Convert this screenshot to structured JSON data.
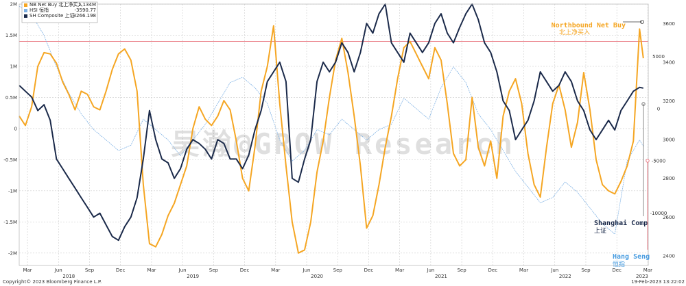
{
  "chart_data": {
    "type": "line",
    "legend": {
      "placement": "top-left",
      "entries": [
        {
          "label": "NB Net Buy 北上净买入",
          "value": "1.134M",
          "color": "#f5a623"
        },
        {
          "label": "HSI 恒指",
          "value": "-3590.77",
          "color": "#7fb2e5"
        },
        {
          "label": "SH Composite 上证",
          "value": "3266.198",
          "color": "#1b2a4a"
        }
      ]
    },
    "left_axis": {
      "ticks": [
        "2M",
        "1.5M",
        "1M",
        "0.5M",
        "0",
        "-0.5M",
        "-1M",
        "-1.5M",
        "-2M"
      ],
      "range": [
        -2.2,
        2.0
      ]
    },
    "right_axis_sh": {
      "ticks": [
        "3600",
        "3400",
        "3200",
        "3000",
        "2800",
        "2600",
        "2400"
      ],
      "range": [
        2350,
        3700
      ]
    },
    "right_axis_hsi": {
      "ticks": [
        "5000",
        "0",
        "-5000",
        "-10000"
      ],
      "range": [
        -15000,
        10000
      ]
    },
    "x_axis": {
      "month_ticks": [
        "Mar",
        "Jun",
        "Sep",
        "Dec",
        "Mar",
        "Jun",
        "Sep",
        "Dec",
        "Mar",
        "Jun",
        "Sep",
        "Dec",
        "Mar",
        "Jun",
        "Sep",
        "Dec",
        "Mar",
        "Jun",
        "Sep",
        "Dec",
        "Mar"
      ],
      "year_labels": [
        "2018",
        "2019",
        "2020",
        "2021",
        "2022",
        "2023"
      ],
      "range": [
        2018.1,
        2023.17
      ]
    },
    "reference_line": {
      "value": 1.4,
      "axis": "left",
      "color": "#e8707a"
    },
    "annotations": [
      {
        "label": "Northbound Net Buy",
        "sublabel": "北上净买入",
        "color": "#f5a623"
      },
      {
        "label": "Shanghai Comp",
        "sublabel": "上证",
        "color": "#1b2a4a"
      },
      {
        "label": "Hang Seng",
        "sublabel": "恒指",
        "color": "#4a9de0"
      }
    ],
    "watermark": "吴瀚@GROW Research",
    "series": [
      {
        "name": "NB Net Buy 北上净买入",
        "axis": "left",
        "color": "#f5a623",
        "x": [
          2018.1,
          2018.15,
          2018.2,
          2018.25,
          2018.3,
          2018.35,
          2018.4,
          2018.45,
          2018.5,
          2018.55,
          2018.6,
          2018.65,
          2018.7,
          2018.75,
          2018.8,
          2018.85,
          2018.9,
          2018.95,
          2019.0,
          2019.05,
          2019.1,
          2019.15,
          2019.2,
          2019.25,
          2019.3,
          2019.35,
          2019.4,
          2019.45,
          2019.5,
          2019.55,
          2019.6,
          2019.65,
          2019.7,
          2019.75,
          2019.8,
          2019.85,
          2019.9,
          2019.95,
          2020.0,
          2020.05,
          2020.1,
          2020.15,
          2020.2,
          2020.25,
          2020.3,
          2020.35,
          2020.4,
          2020.45,
          2020.5,
          2020.55,
          2020.6,
          2020.65,
          2020.7,
          2020.75,
          2020.8,
          2020.85,
          2020.9,
          2020.95,
          2021.0,
          2021.05,
          2021.1,
          2021.15,
          2021.2,
          2021.25,
          2021.3,
          2021.35,
          2021.4,
          2021.45,
          2021.5,
          2021.55,
          2021.6,
          2021.65,
          2021.7,
          2021.75,
          2021.8,
          2021.85,
          2021.9,
          2021.95,
          2022.0,
          2022.05,
          2022.1,
          2022.15,
          2022.2,
          2022.25,
          2022.3,
          2022.35,
          2022.4,
          2022.45,
          2022.5,
          2022.55,
          2022.6,
          2022.65,
          2022.7,
          2022.75,
          2022.8,
          2022.85,
          2022.9,
          2022.95,
          2023.0,
          2023.05,
          2023.1,
          2023.13
        ],
        "values": [
          0.2,
          0.05,
          0.35,
          1.0,
          1.22,
          1.2,
          1.05,
          0.75,
          0.55,
          0.3,
          0.6,
          0.55,
          0.35,
          0.3,
          0.6,
          0.95,
          1.2,
          1.28,
          1.1,
          0.6,
          -0.9,
          -1.85,
          -1.9,
          -1.7,
          -1.4,
          -1.2,
          -0.9,
          -0.6,
          0.0,
          0.35,
          0.15,
          0.05,
          0.2,
          0.45,
          0.3,
          -0.2,
          -0.8,
          -1.0,
          -0.3,
          0.6,
          1.0,
          1.65,
          0.4,
          -0.6,
          -1.5,
          -2.0,
          -1.95,
          -1.5,
          -0.7,
          -0.2,
          0.5,
          1.1,
          1.45,
          0.9,
          0.2,
          -0.6,
          -1.6,
          -1.4,
          -0.9,
          -0.3,
          0.2,
          0.8,
          1.3,
          1.4,
          1.2,
          1.0,
          0.8,
          1.3,
          1.1,
          0.4,
          -0.4,
          -0.6,
          -0.5,
          0.5,
          -0.3,
          -0.6,
          -0.2,
          -0.8,
          0.2,
          0.6,
          0.8,
          0.4,
          -0.4,
          -0.9,
          -1.1,
          -0.3,
          0.4,
          0.7,
          0.3,
          -0.3,
          0.1,
          0.9,
          0.3,
          -0.5,
          -0.9,
          -1.0,
          -1.05,
          -0.85,
          -0.6,
          -0.2,
          1.6,
          1.13
        ]
      },
      {
        "name": "SH Composite 上证",
        "axis": "right_sh",
        "color": "#1b2a4a",
        "x": [
          2018.1,
          2018.15,
          2018.2,
          2018.25,
          2018.3,
          2018.35,
          2018.4,
          2018.45,
          2018.5,
          2018.55,
          2018.6,
          2018.65,
          2018.7,
          2018.75,
          2018.8,
          2018.85,
          2018.9,
          2018.95,
          2019.0,
          2019.05,
          2019.1,
          2019.15,
          2019.2,
          2019.25,
          2019.3,
          2019.35,
          2019.4,
          2019.45,
          2019.5,
          2019.55,
          2019.6,
          2019.65,
          2019.7,
          2019.75,
          2019.8,
          2019.85,
          2019.9,
          2019.95,
          2020.0,
          2020.05,
          2020.1,
          2020.15,
          2020.2,
          2020.25,
          2020.3,
          2020.35,
          2020.4,
          2020.45,
          2020.5,
          2020.55,
          2020.6,
          2020.65,
          2020.7,
          2020.75,
          2020.8,
          2020.85,
          2020.9,
          2020.95,
          2021.0,
          2021.05,
          2021.1,
          2021.15,
          2021.2,
          2021.25,
          2021.3,
          2021.35,
          2021.4,
          2021.45,
          2021.5,
          2021.55,
          2021.6,
          2021.65,
          2021.7,
          2021.75,
          2021.8,
          2021.85,
          2021.9,
          2021.95,
          2022.0,
          2022.05,
          2022.1,
          2022.15,
          2022.2,
          2022.25,
          2022.3,
          2022.35,
          2022.4,
          2022.45,
          2022.5,
          2022.55,
          2022.6,
          2022.65,
          2022.7,
          2022.75,
          2022.8,
          2022.85,
          2022.9,
          2022.95,
          2023.0,
          2023.05,
          2023.1,
          2023.13
        ],
        "values": [
          3280,
          3250,
          3220,
          3150,
          3180,
          3100,
          2900,
          2850,
          2800,
          2750,
          2700,
          2650,
          2600,
          2620,
          2560,
          2500,
          2480,
          2550,
          2600,
          2700,
          2900,
          3150,
          3000,
          2900,
          2880,
          2800,
          2850,
          2950,
          3000,
          2980,
          2950,
          2900,
          3000,
          2980,
          2900,
          2900,
          2850,
          2920,
          3050,
          3150,
          3300,
          3350,
          3400,
          3300,
          2800,
          2780,
          2900,
          3000,
          3300,
          3400,
          3350,
          3400,
          3500,
          3450,
          3350,
          3450,
          3600,
          3550,
          3650,
          3700,
          3500,
          3450,
          3400,
          3550,
          3500,
          3450,
          3500,
          3600,
          3650,
          3550,
          3500,
          3580,
          3650,
          3700,
          3620,
          3500,
          3450,
          3350,
          3200,
          3150,
          3000,
          3050,
          3100,
          3200,
          3350,
          3300,
          3250,
          3280,
          3350,
          3300,
          3200,
          3150,
          3050,
          3000,
          3050,
          3100,
          3050,
          3150,
          3200,
          3250,
          3270,
          3266
        ]
      },
      {
        "name": "HSI 恒指",
        "axis": "right_hsi",
        "color": "#7fb2e5",
        "x": [
          2018.1,
          2018.2,
          2018.3,
          2018.4,
          2018.5,
          2018.6,
          2018.7,
          2018.8,
          2018.9,
          2019.0,
          2019.1,
          2019.2,
          2019.3,
          2019.4,
          2019.5,
          2019.6,
          2019.7,
          2019.8,
          2019.9,
          2020.0,
          2020.1,
          2020.2,
          2020.3,
          2020.4,
          2020.5,
          2020.6,
          2020.7,
          2020.8,
          2020.9,
          2021.0,
          2021.1,
          2021.2,
          2021.3,
          2021.4,
          2021.5,
          2021.6,
          2021.7,
          2021.8,
          2021.9,
          2022.0,
          2022.1,
          2022.2,
          2022.3,
          2022.4,
          2022.5,
          2022.6,
          2022.7,
          2022.8,
          2022.9,
          2023.0,
          2023.1,
          2023.13
        ],
        "values": [
          9800,
          9000,
          7000,
          4000,
          1500,
          -500,
          -2000,
          -3000,
          -4000,
          -3500,
          -1000,
          -2000,
          -3000,
          -4500,
          -3000,
          -1500,
          500,
          2500,
          3000,
          2000,
          500,
          -3000,
          -5000,
          -4000,
          -2000,
          -2500,
          -1000,
          -2000,
          -3000,
          -2000,
          -1500,
          1000,
          0,
          -1000,
          2000,
          4000,
          2500,
          -500,
          -2000,
          -4000,
          -6000,
          -7500,
          -9000,
          -8500,
          -7000,
          -8000,
          -9500,
          -11000,
          -12000,
          -5000,
          -3000,
          -3590
        ]
      }
    ],
    "footer_left": "Copyright© 2023 Bloomberg Finance L.P.",
    "footer_right": "19-Feb-2023 13:22:02"
  }
}
